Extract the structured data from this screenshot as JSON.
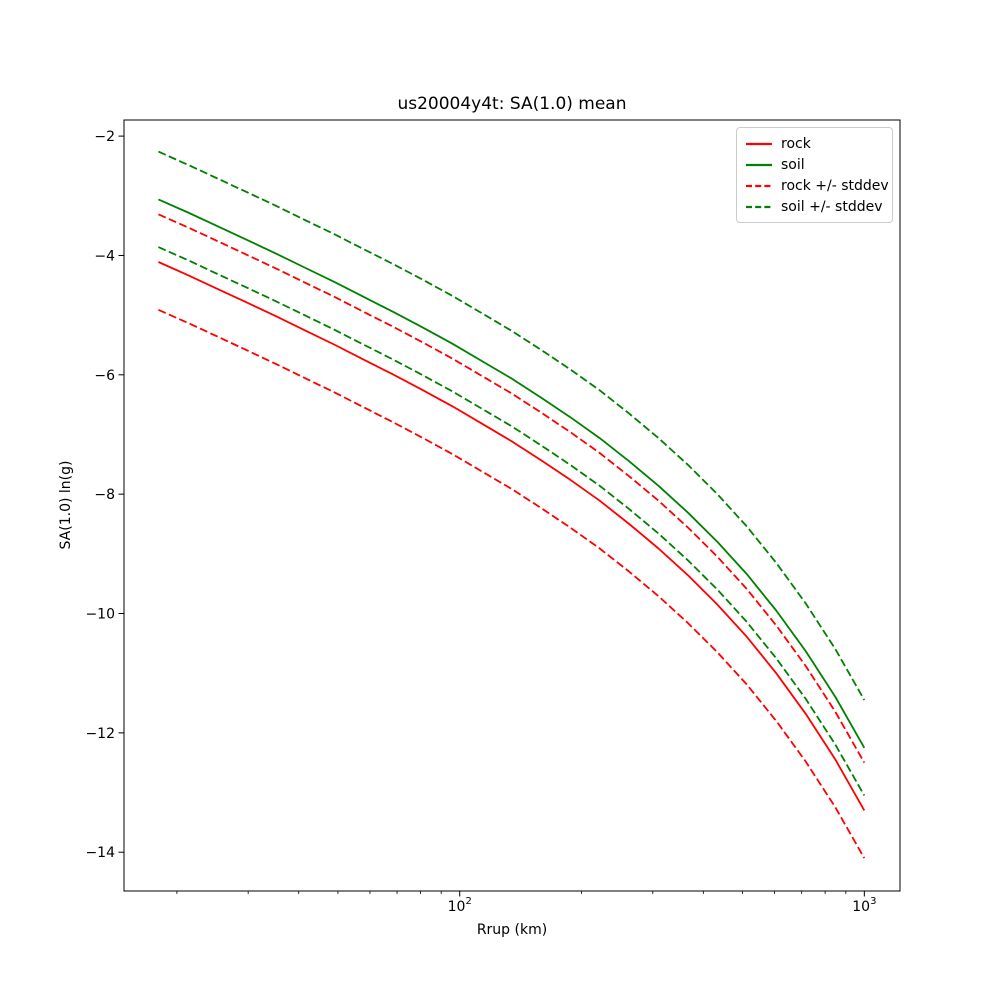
{
  "figure": {
    "title": "us20004y4t: SA(1.0) mean",
    "xlabel": "Rrup (km)",
    "ylabel": "SA(1.0) ln(g)"
  },
  "colors": {
    "rock": "#ff0000",
    "soil": "#008000",
    "axis": "#000000",
    "legend_border": "#cccccc"
  },
  "legend": {
    "items": [
      {
        "label": "rock",
        "color": "#ff0000",
        "dash": "solid"
      },
      {
        "label": "soil",
        "color": "#008000",
        "dash": "solid"
      },
      {
        "label": "rock +/- stddev",
        "color": "#ff0000",
        "dash": "dashed"
      },
      {
        "label": "soil +/- stddev",
        "color": "#008000",
        "dash": "dashed"
      }
    ]
  },
  "chart_data": {
    "type": "line",
    "title": "us20004y4t: SA(1.0) mean",
    "xlabel": "Rrup (km)",
    "ylabel": "SA(1.0) ln(g)",
    "x_scale": "log",
    "y_scale": "linear",
    "grid": false,
    "legend_position": "upper right",
    "xlim": [
      14.8,
      1225
    ],
    "ylim": [
      -14.65,
      -1.73
    ],
    "stddev": 0.8,
    "x_major_ticks": [
      {
        "value": 100,
        "label_base": "10",
        "label_exp": "2"
      },
      {
        "value": 1000,
        "label_base": "10",
        "label_exp": "3"
      }
    ],
    "x_minor_ticks": [
      20,
      30,
      40,
      50,
      60,
      70,
      80,
      90,
      200,
      300,
      400,
      500,
      600,
      700,
      800,
      900
    ],
    "y_ticks": [
      {
        "value": -2,
        "label": "−2"
      },
      {
        "value": -4,
        "label": "−4"
      },
      {
        "value": -6,
        "label": "−6"
      },
      {
        "value": -8,
        "label": "−8"
      },
      {
        "value": -10,
        "label": "−10"
      },
      {
        "value": -12,
        "label": "−12"
      },
      {
        "value": -14,
        "label": "−14"
      }
    ],
    "x": [
      18,
      21.3,
      25.2,
      29.8,
      35.2,
      41.6,
      49.2,
      58.1,
      68.7,
      81.2,
      96,
      113.5,
      134.2,
      158.7,
      187.6,
      221.8,
      262.3,
      310,
      366.6,
      433.4,
      512.3,
      605.7,
      716.1,
      846.6,
      1000
    ],
    "series": [
      {
        "name": "rock",
        "color": "#ff0000",
        "style": "solid",
        "values": [
          -4.11,
          -4.33,
          -4.56,
          -4.79,
          -5.02,
          -5.26,
          -5.5,
          -5.75,
          -6.0,
          -6.26,
          -6.53,
          -6.82,
          -7.11,
          -7.43,
          -7.76,
          -8.11,
          -8.5,
          -8.91,
          -9.36,
          -9.85,
          -10.39,
          -11.0,
          -11.68,
          -12.44,
          -13.3
        ]
      },
      {
        "name": "soil",
        "color": "#008000",
        "style": "solid",
        "values": [
          -3.06,
          -3.28,
          -3.51,
          -3.74,
          -3.97,
          -4.21,
          -4.45,
          -4.7,
          -4.95,
          -5.21,
          -5.48,
          -5.77,
          -6.06,
          -6.38,
          -6.71,
          -7.06,
          -7.45,
          -7.86,
          -8.31,
          -8.8,
          -9.34,
          -9.95,
          -10.63,
          -11.39,
          -12.25
        ]
      },
      {
        "name": "rock plus stddev",
        "color": "#ff0000",
        "style": "dashed",
        "values": [
          -3.31,
          -3.53,
          -3.76,
          -3.99,
          -4.22,
          -4.46,
          -4.7,
          -4.95,
          -5.2,
          -5.46,
          -5.73,
          -6.02,
          -6.31,
          -6.63,
          -6.96,
          -7.31,
          -7.7,
          -8.11,
          -8.56,
          -9.05,
          -9.59,
          -10.2,
          -10.88,
          -11.64,
          -12.5
        ]
      },
      {
        "name": "rock minus stddev",
        "color": "#ff0000",
        "style": "dashed",
        "values": [
          -4.91,
          -5.13,
          -5.36,
          -5.59,
          -5.82,
          -6.06,
          -6.3,
          -6.55,
          -6.8,
          -7.06,
          -7.33,
          -7.62,
          -7.91,
          -8.23,
          -8.56,
          -8.91,
          -9.3,
          -9.71,
          -10.16,
          -10.65,
          -11.19,
          -11.8,
          -12.48,
          -13.24,
          -14.1
        ]
      },
      {
        "name": "soil plus stddev",
        "color": "#008000",
        "style": "dashed",
        "values": [
          -2.26,
          -2.48,
          -2.71,
          -2.94,
          -3.17,
          -3.41,
          -3.65,
          -3.9,
          -4.15,
          -4.41,
          -4.68,
          -4.97,
          -5.26,
          -5.58,
          -5.91,
          -6.26,
          -6.65,
          -7.06,
          -7.51,
          -8.0,
          -8.54,
          -9.15,
          -9.83,
          -10.59,
          -11.45
        ]
      },
      {
        "name": "soil minus stddev",
        "color": "#008000",
        "style": "dashed",
        "values": [
          -3.86,
          -4.08,
          -4.31,
          -4.54,
          -4.77,
          -5.01,
          -5.25,
          -5.5,
          -5.75,
          -6.01,
          -6.28,
          -6.57,
          -6.86,
          -7.18,
          -7.51,
          -7.86,
          -8.25,
          -8.66,
          -9.11,
          -9.6,
          -10.14,
          -10.75,
          -11.43,
          -12.19,
          -13.05
        ]
      }
    ]
  }
}
